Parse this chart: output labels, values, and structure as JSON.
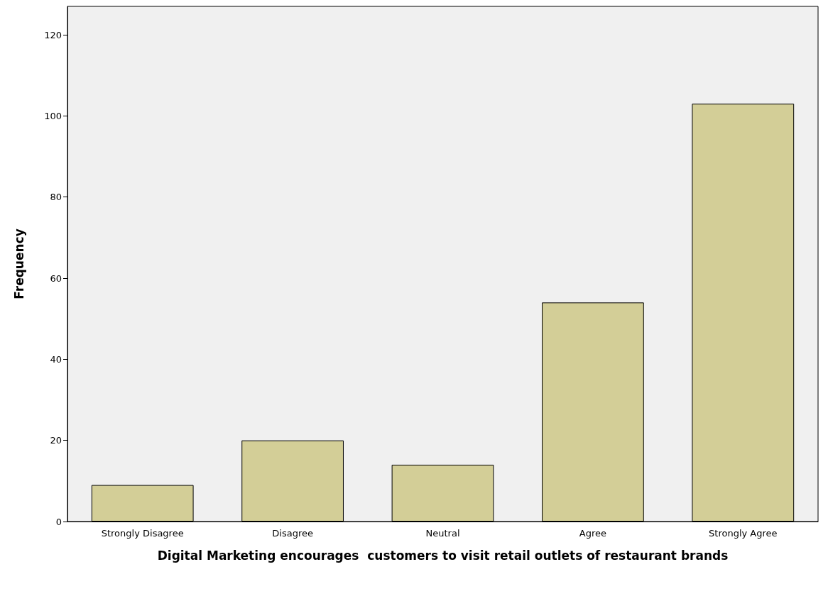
{
  "chart_data": {
    "type": "bar",
    "xlabel": "Digital Marketing encourages  customers to visit retail outlets of restaurant brands",
    "ylabel": "Frequency",
    "categories": [
      "Strongly Disagree",
      "Disagree",
      "Neutral",
      "Agree",
      "Strongly Agree"
    ],
    "values": [
      9,
      20,
      14,
      54,
      103
    ],
    "color": "#d3ce97",
    "ylim": [
      0,
      127
    ],
    "yticks": [
      0,
      20,
      40,
      60,
      80,
      100,
      120
    ],
    "grid": false
  }
}
